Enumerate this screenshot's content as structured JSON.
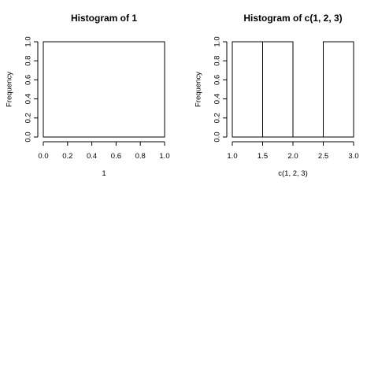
{
  "chart_data": [
    {
      "type": "bar",
      "title": "Histogram of 1",
      "xlabel": "1",
      "ylabel": "Frequency",
      "xlim": [
        0.0,
        1.0
      ],
      "ylim": [
        0.0,
        1.0
      ],
      "x_ticks": [
        0.0,
        0.2,
        0.4,
        0.6,
        0.8,
        1.0
      ],
      "x_tick_labels": [
        "0.0",
        "0.2",
        "0.4",
        "0.6",
        "0.8",
        "1.0"
      ],
      "y_ticks": [
        0.0,
        0.2,
        0.4,
        0.6,
        0.8,
        1.0
      ],
      "y_tick_labels": [
        "0.0",
        "0.2",
        "0.4",
        "0.6",
        "0.8",
        "1.0"
      ],
      "bins": [
        {
          "x0": 0.0,
          "x1": 1.0,
          "count": 1
        }
      ],
      "grid": false
    },
    {
      "type": "bar",
      "title": "Histogram of c(1, 2, 3)",
      "xlabel": "c(1, 2, 3)",
      "ylabel": "Frequency",
      "xlim": [
        1.0,
        3.0
      ],
      "ylim": [
        0.0,
        1.0
      ],
      "x_ticks": [
        1.0,
        1.5,
        2.0,
        2.5,
        3.0
      ],
      "x_tick_labels": [
        "1.0",
        "1.5",
        "2.0",
        "2.5",
        "3.0"
      ],
      "y_ticks": [
        0.0,
        0.2,
        0.4,
        0.6,
        0.8,
        1.0
      ],
      "y_tick_labels": [
        "0.0",
        "0.2",
        "0.4",
        "0.6",
        "0.8",
        "1.0"
      ],
      "bins": [
        {
          "x0": 1.0,
          "x1": 1.5,
          "count": 1
        },
        {
          "x0": 1.5,
          "x1": 2.0,
          "count": 1
        },
        {
          "x0": 2.0,
          "x1": 2.5,
          "count": 0
        },
        {
          "x0": 2.5,
          "x1": 3.0,
          "count": 1
        }
      ],
      "grid": false
    }
  ]
}
